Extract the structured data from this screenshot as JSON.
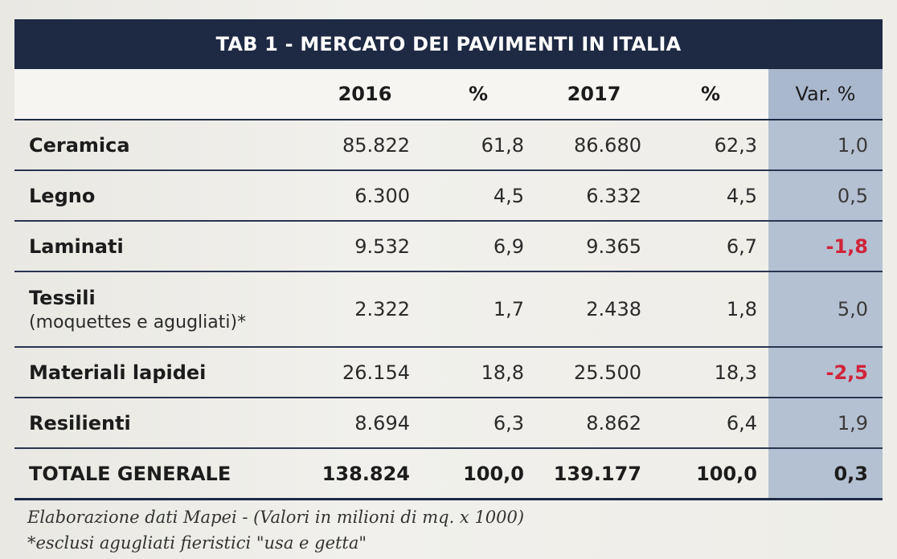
{
  "title": "TAB 1 - MERCATO DEI PAVIMENTI IN ITALIA",
  "headers": [
    "",
    "2016",
    "%",
    "2017",
    "%",
    "Var. %"
  ],
  "rows": [
    {
      "label": "Ceramica",
      "sub": "",
      "v2016": "85.822",
      "p2016": "61,8",
      "v2017": "86.680",
      "p2017": "62,3",
      "var": "1,0"
    },
    {
      "label": "Legno",
      "sub": "",
      "v2016": "6.300",
      "p2016": "4,5",
      "v2017": "6.332",
      "p2017": "4,5",
      "var": "0,5"
    },
    {
      "label": "Laminati",
      "sub": "",
      "v2016": "9.532",
      "p2016": "6,9",
      "v2017": "9.365",
      "p2017": "6,7",
      "var": "-1,8"
    },
    {
      "label": "Tessili",
      "sub": "(moquettes e agugliati)*",
      "v2016": "2.322",
      "p2016": "1,7",
      "v2017": "2.438",
      "p2017": "1,8",
      "var": "5,0"
    },
    {
      "label": "Materiali lapidei",
      "sub": "",
      "v2016": "26.154",
      "p2016": "18,8",
      "v2017": "25.500",
      "p2017": "18,3",
      "var": "-2,5"
    },
    {
      "label": "Resilienti",
      "sub": "",
      "v2016": "8.694",
      "p2016": "6,3",
      "v2017": "8.862",
      "p2017": "6,4",
      "var": "1,9"
    }
  ],
  "total": {
    "label": "TOTALE GENERALE",
    "v2016": "138.824",
    "p2016": "100,0",
    "v2017": "139.177",
    "p2017": "100,0",
    "var": "0,3"
  },
  "notes": {
    "line1": "Elaborazione dati Mapei - (Valori in milioni di mq. x 1000)",
    "line2": "*esclusi agugliati fieristici \"usa e getta\""
  },
  "colors": {
    "header_bg": "#1e2a44",
    "var_col_bg": "#b4c1d2",
    "negative": "#d1233a"
  }
}
